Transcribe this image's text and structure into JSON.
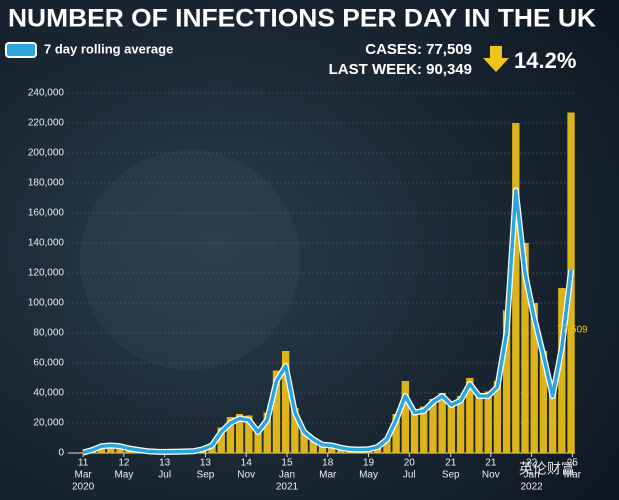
{
  "chart_data": {
    "type": "bar-line",
    "title": "NUMBER OF INFECTIONS PER DAY IN THE UK",
    "header": {
      "cases": "CASES: 77,509",
      "last_week": "LAST WEEK: 90,349",
      "change": "14.2%"
    },
    "annotation": "77,509",
    "watermark": "英伦财富",
    "x": [
      "2020-03-11",
      "2020-03-25",
      "2020-04-08",
      "2020-04-22",
      "2020-05-06",
      "2020-05-20",
      "2020-06-03",
      "2020-06-17",
      "2020-07-01",
      "2020-07-15",
      "2020-07-29",
      "2020-08-12",
      "2020-08-26",
      "2020-09-09",
      "2020-09-23",
      "2020-10-07",
      "2020-10-21",
      "2020-11-04",
      "2020-11-18",
      "2020-12-02",
      "2020-12-16",
      "2020-12-30",
      "2021-01-13",
      "2021-01-27",
      "2021-02-10",
      "2021-02-24",
      "2021-03-10",
      "2021-03-24",
      "2021-04-07",
      "2021-04-21",
      "2021-05-05",
      "2021-05-19",
      "2021-06-02",
      "2021-06-16",
      "2021-06-30",
      "2021-07-14",
      "2021-07-28",
      "2021-08-11",
      "2021-08-25",
      "2021-09-08",
      "2021-09-22",
      "2021-10-06",
      "2021-10-20",
      "2021-11-03",
      "2021-11-17",
      "2021-12-01",
      "2021-12-15",
      "2021-12-29",
      "2022-01-12",
      "2022-01-26",
      "2022-02-09",
      "2022-02-23",
      "2022-03-09",
      "2022-03-23"
    ],
    "bars": {
      "color": "#f2c318",
      "values": [
        500,
        2500,
        5500,
        5000,
        4800,
        3200,
        2000,
        1300,
        900,
        700,
        900,
        1100,
        1400,
        3000,
        6500,
        17000,
        24000,
        26000,
        25000,
        15000,
        27000,
        55000,
        68000,
        30000,
        15000,
        9500,
        6000,
        5500,
        3500,
        2600,
        2400,
        2700,
        4500,
        10000,
        26000,
        48000,
        29000,
        31000,
        36000,
        40000,
        34000,
        38000,
        50000,
        40000,
        41000,
        48000,
        95000,
        220000,
        140000,
        100000,
        68000,
        42000,
        110000,
        227000
      ]
    },
    "series": [
      {
        "name": "7 day rolling average",
        "color": "#2ba6dc",
        "values": [
          300,
          2000,
          4500,
          5000,
          4500,
          3000,
          2000,
          1200,
          800,
          700,
          800,
          1000,
          1200,
          2500,
          5000,
          14000,
          20000,
          23000,
          22000,
          14000,
          22000,
          48000,
          58000,
          27000,
          14000,
          9000,
          5500,
          5000,
          3500,
          2500,
          2300,
          2500,
          4000,
          9000,
          22000,
          38000,
          27000,
          28000,
          34000,
          38000,
          32000,
          35000,
          46000,
          38000,
          38000,
          44000,
          80000,
          175000,
          120000,
          90000,
          65000,
          38000,
          70000,
          122000
        ]
      }
    ],
    "xlim": [
      "2020-02-17",
      "2022-03-29"
    ],
    "xticks": [
      {
        "value": "2020-03-11",
        "label": [
          "11",
          "Mar",
          "2020"
        ]
      },
      {
        "value": "2020-05-12",
        "label": [
          "12",
          "May"
        ]
      },
      {
        "value": "2020-07-13",
        "label": [
          "13",
          "Jul"
        ]
      },
      {
        "value": "2020-09-13",
        "label": [
          "13",
          "Sep"
        ]
      },
      {
        "value": "2020-11-14",
        "label": [
          "14",
          "Nov"
        ]
      },
      {
        "value": "2021-01-15",
        "label": [
          "15",
          "Jan",
          "2021"
        ]
      },
      {
        "value": "2021-03-18",
        "label": [
          "18",
          "Mar"
        ]
      },
      {
        "value": "2021-05-19",
        "label": [
          "19",
          "May"
        ]
      },
      {
        "value": "2021-07-20",
        "label": [
          "20",
          "Jul"
        ]
      },
      {
        "value": "2021-09-21",
        "label": [
          "21",
          "Sep"
        ]
      },
      {
        "value": "2021-11-21",
        "label": [
          "21",
          "Nov"
        ]
      },
      {
        "value": "2022-01-22",
        "label": [
          "22",
          "Jan",
          "2022"
        ]
      },
      {
        "value": "2022-03-25",
        "label": [
          "25",
          "Mar"
        ]
      }
    ],
    "ylim": [
      0,
      240000
    ],
    "yticks": [
      0,
      {
        "value": 20000,
        "label": "20,000"
      },
      {
        "value": 40000,
        "label": "40,000"
      },
      {
        "value": 60000,
        "label": "60,000"
      },
      {
        "value": 80000,
        "label": "80,000"
      },
      {
        "value": 100000,
        "label": "100,000"
      },
      {
        "value": 120000,
        "label": "120,000"
      },
      {
        "value": 140000,
        "label": "140,000"
      },
      {
        "value": 160000,
        "label": "160,000"
      },
      {
        "value": 180000,
        "label": "180,000"
      },
      {
        "value": 200000,
        "label": "200,000"
      },
      {
        "value": 220000,
        "label": "220,000"
      },
      {
        "value": 240000,
        "label": "240,000"
      }
    ],
    "grid": true
  }
}
